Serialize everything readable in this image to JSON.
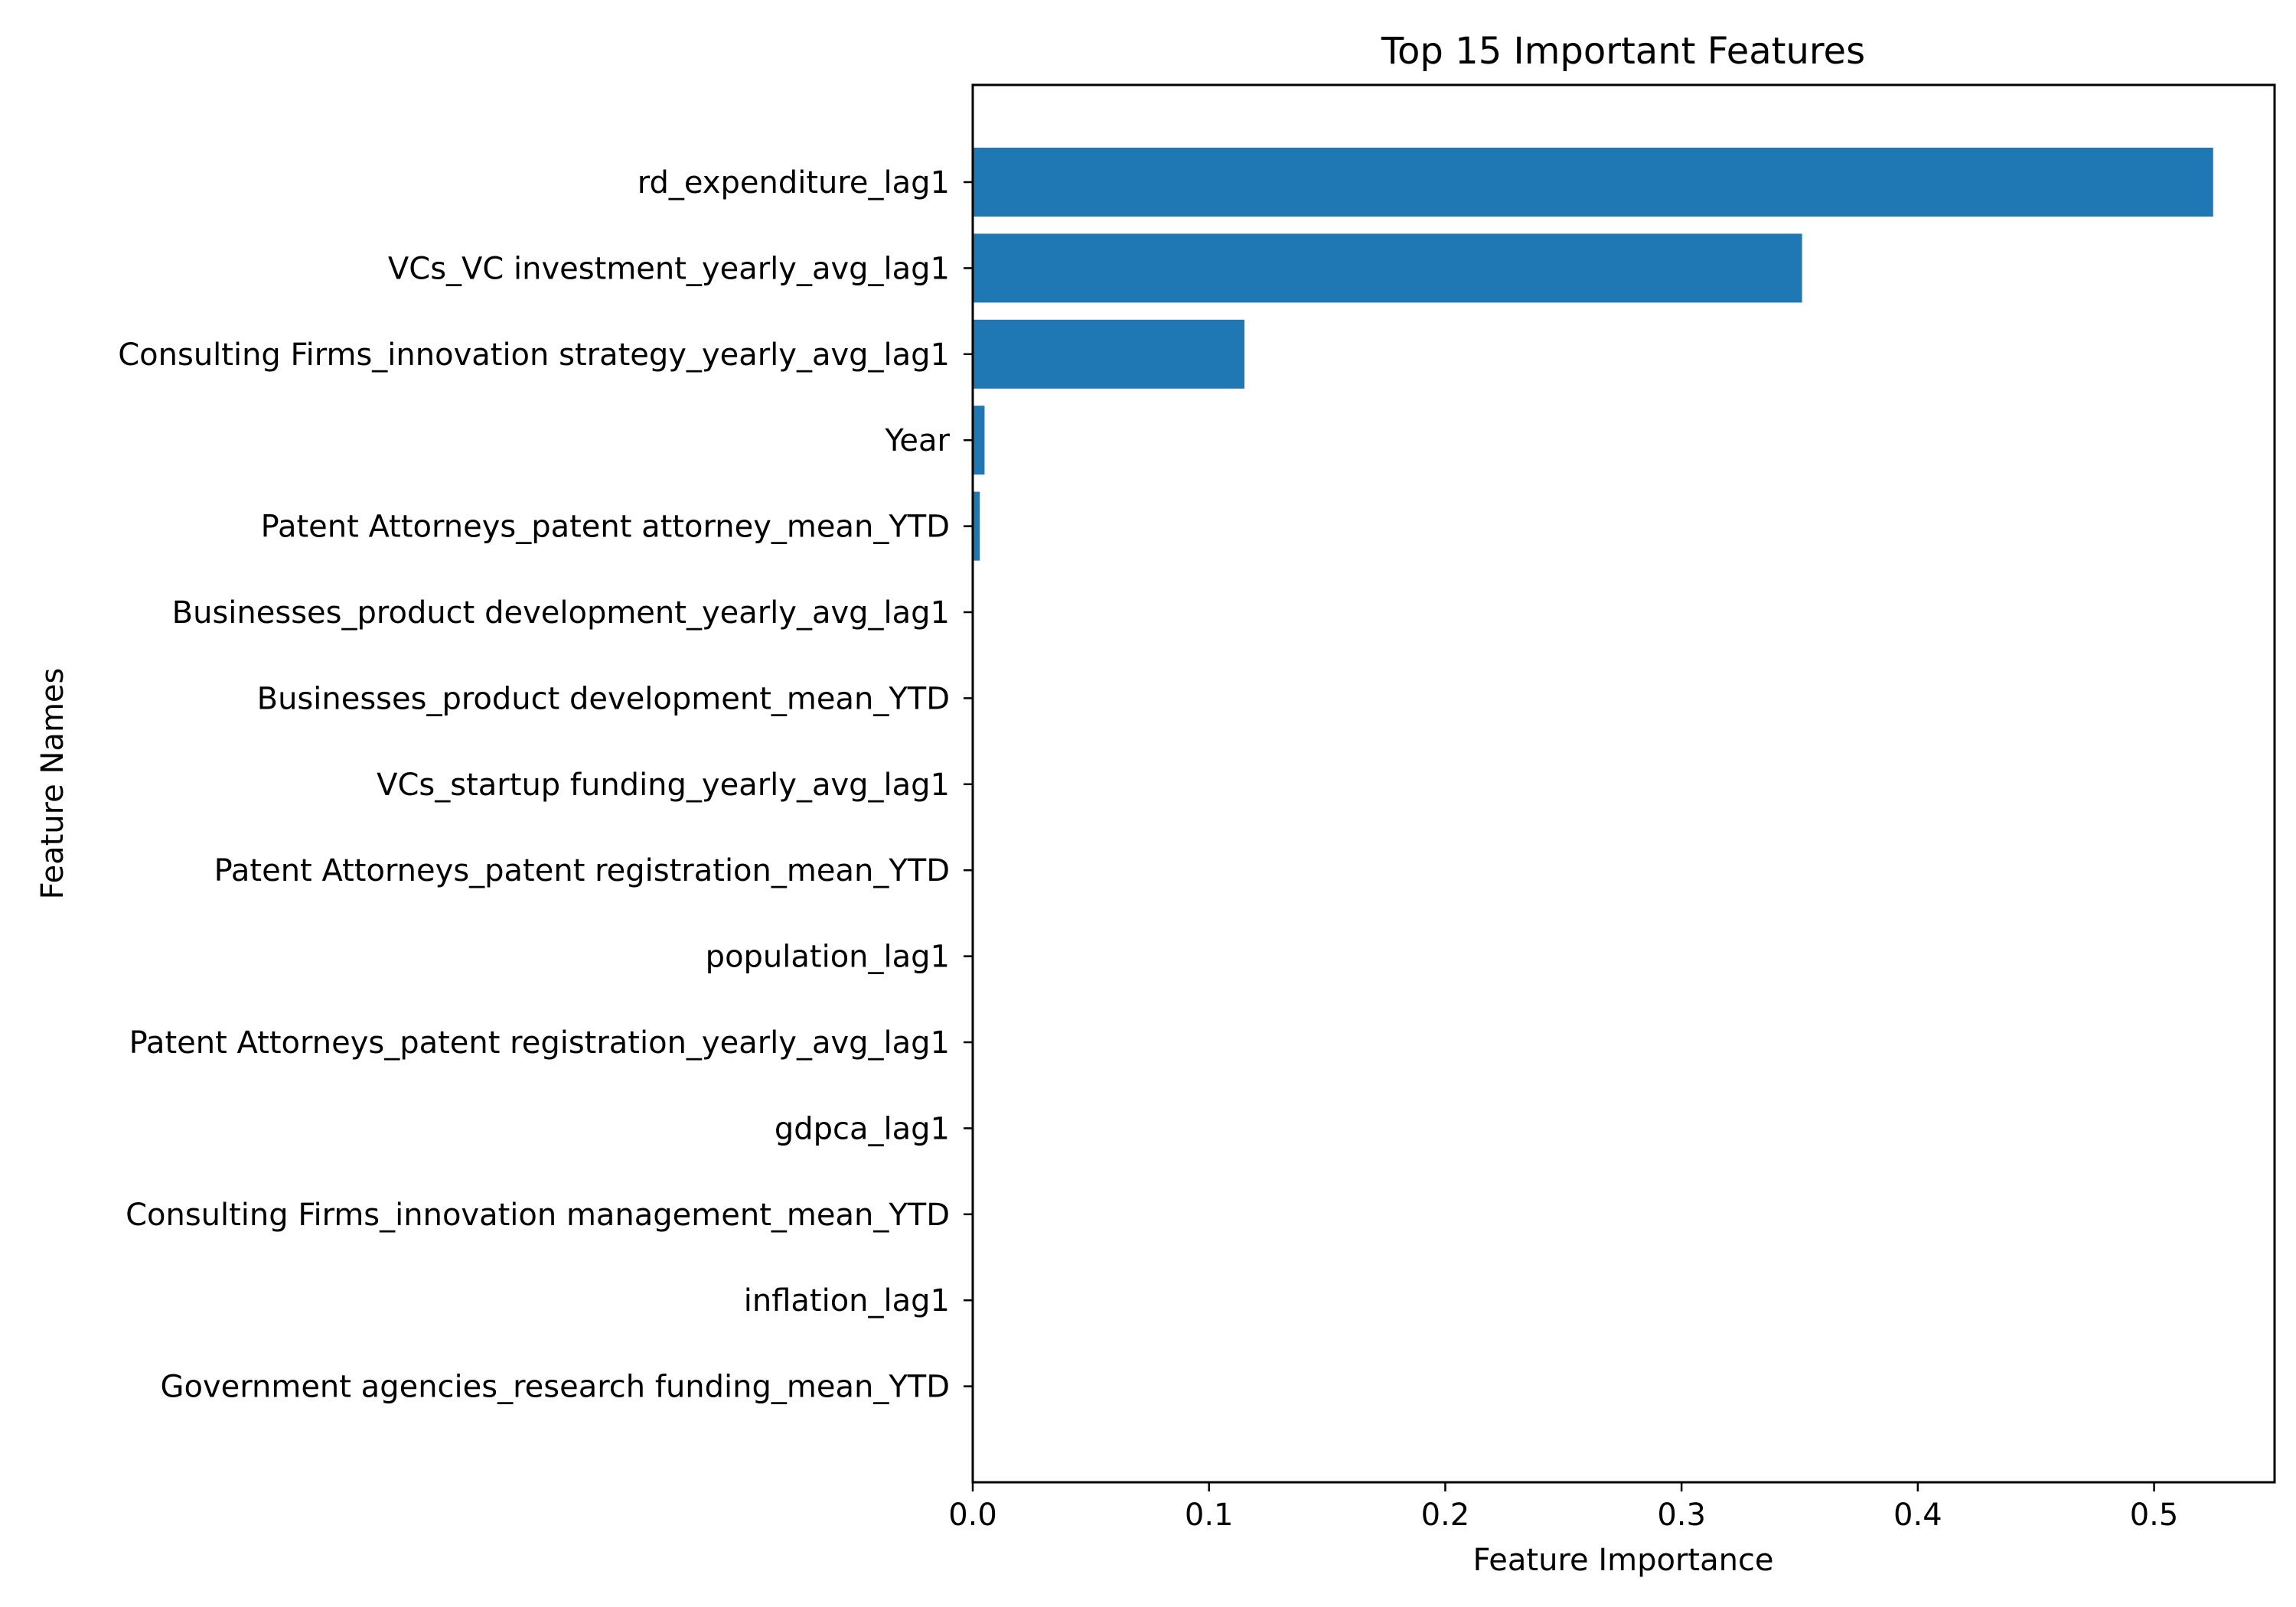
{
  "chart_data": {
    "type": "bar",
    "orientation": "horizontal",
    "title": "Top 15 Important Features",
    "xlabel": "Feature Importance",
    "ylabel": "Feature Names",
    "xlim": [
      0,
      0.551
    ],
    "x_ticks": [
      "0.0",
      "0.1",
      "0.2",
      "0.3",
      "0.4",
      "0.5"
    ],
    "grid": false,
    "legend": "none",
    "bar_color": "#1f77b4",
    "categories": [
      "rd_expenditure_lag1",
      "VCs_VC investment_yearly_avg_lag1",
      "Consulting Firms_innovation strategy_yearly_avg_lag1",
      "Year",
      "Patent Attorneys_patent attorney_mean_YTD",
      "Businesses_product development_yearly_avg_lag1",
      "Businesses_product development_mean_YTD",
      "VCs_startup funding_yearly_avg_lag1",
      "Patent Attorneys_patent registration_mean_YTD",
      "population_lag1",
      "Patent Attorneys_patent registration_yearly_avg_lag1",
      "gdpca_lag1",
      "Consulting Firms_innovation management_mean_YTD",
      "inflation_lag1",
      "Government agencies_research funding_mean_YTD"
    ],
    "values": [
      0.525,
      0.351,
      0.115,
      0.005,
      0.003,
      0.0003,
      0.0003,
      0.0002,
      0.0002,
      0.0002,
      0.0001,
      0.0001,
      0.0001,
      0.0001,
      0.0001
    ]
  }
}
